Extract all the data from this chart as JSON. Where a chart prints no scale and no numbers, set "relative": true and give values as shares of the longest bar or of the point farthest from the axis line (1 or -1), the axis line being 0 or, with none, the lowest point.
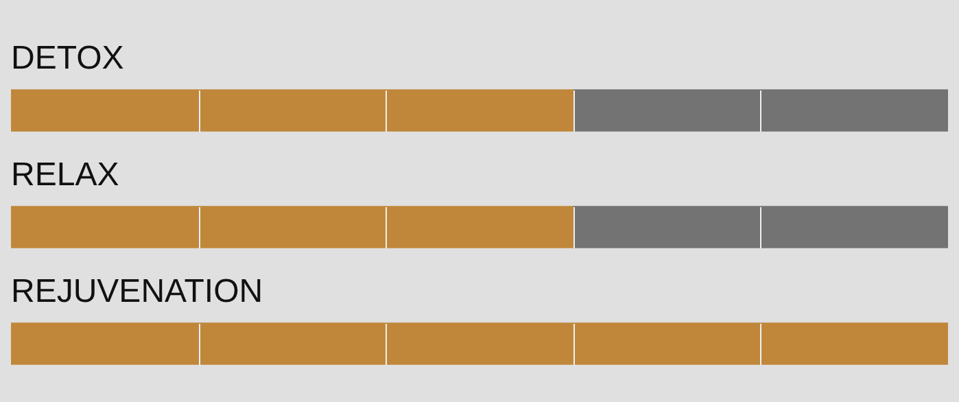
{
  "chart_data": {
    "type": "bar",
    "orientation": "horizontal",
    "stacked": true,
    "relative": true,
    "categories": [
      "DETOX",
      "RELAX",
      "REJUVENATION"
    ],
    "series": [
      {
        "color": "#c0873a",
        "values": [
          0.6,
          0.6,
          1
        ]
      },
      {
        "color": "#737373",
        "values": [
          0.4,
          0.4,
          0
        ]
      }
    ],
    "legend": false
  }
}
